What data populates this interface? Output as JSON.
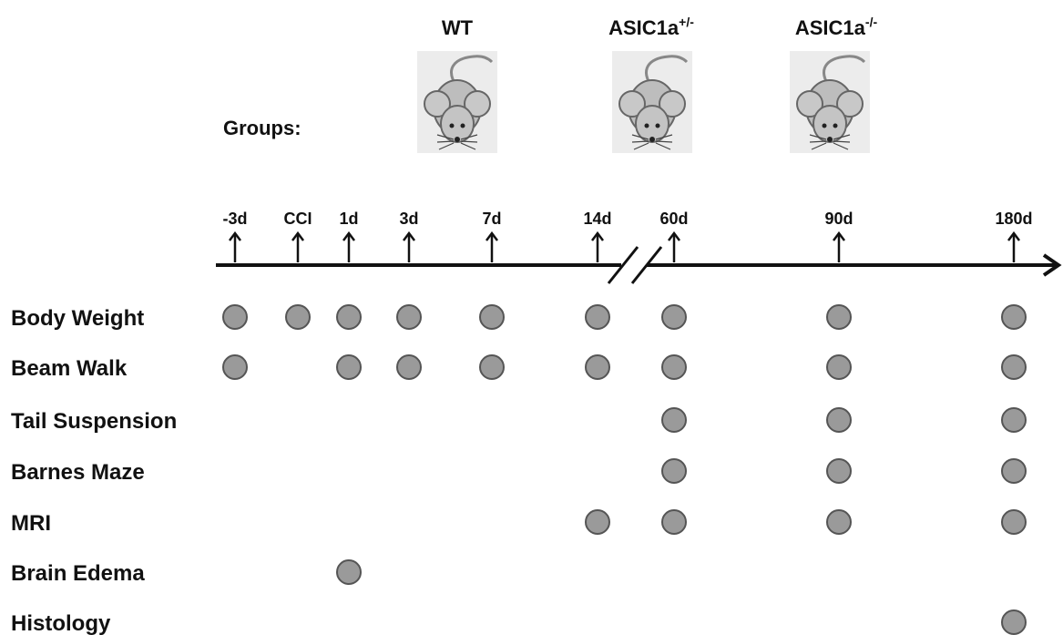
{
  "groups": {
    "label": "Groups:",
    "names": [
      {
        "base": "WT",
        "sup": ""
      },
      {
        "base": "ASIC1a",
        "sup": "+/-"
      },
      {
        "base": "ASIC1a",
        "sup": "-/-"
      }
    ]
  },
  "timepoints": [
    "-3d",
    "CCI",
    "1d",
    "3d",
    "7d",
    "14d",
    "60d",
    "90d",
    "180d"
  ],
  "rows": [
    {
      "label": "Body Weight",
      "at": [
        true,
        true,
        true,
        true,
        true,
        true,
        true,
        true,
        true
      ]
    },
    {
      "label": "Beam Walk",
      "at": [
        true,
        false,
        true,
        true,
        true,
        true,
        true,
        true,
        true
      ]
    },
    {
      "label": "Tail Suspension",
      "at": [
        false,
        false,
        false,
        false,
        false,
        false,
        true,
        true,
        true
      ]
    },
    {
      "label": "Barnes Maze",
      "at": [
        false,
        false,
        false,
        false,
        false,
        false,
        true,
        true,
        true
      ]
    },
    {
      "label": "MRI",
      "at": [
        false,
        false,
        false,
        false,
        false,
        true,
        true,
        true,
        true
      ]
    },
    {
      "label": "Brain Edema",
      "at": [
        false,
        false,
        true,
        false,
        false,
        false,
        false,
        false,
        false
      ]
    },
    {
      "label": "Histology",
      "at": [
        false,
        false,
        false,
        false,
        false,
        false,
        false,
        false,
        true
      ]
    }
  ]
}
